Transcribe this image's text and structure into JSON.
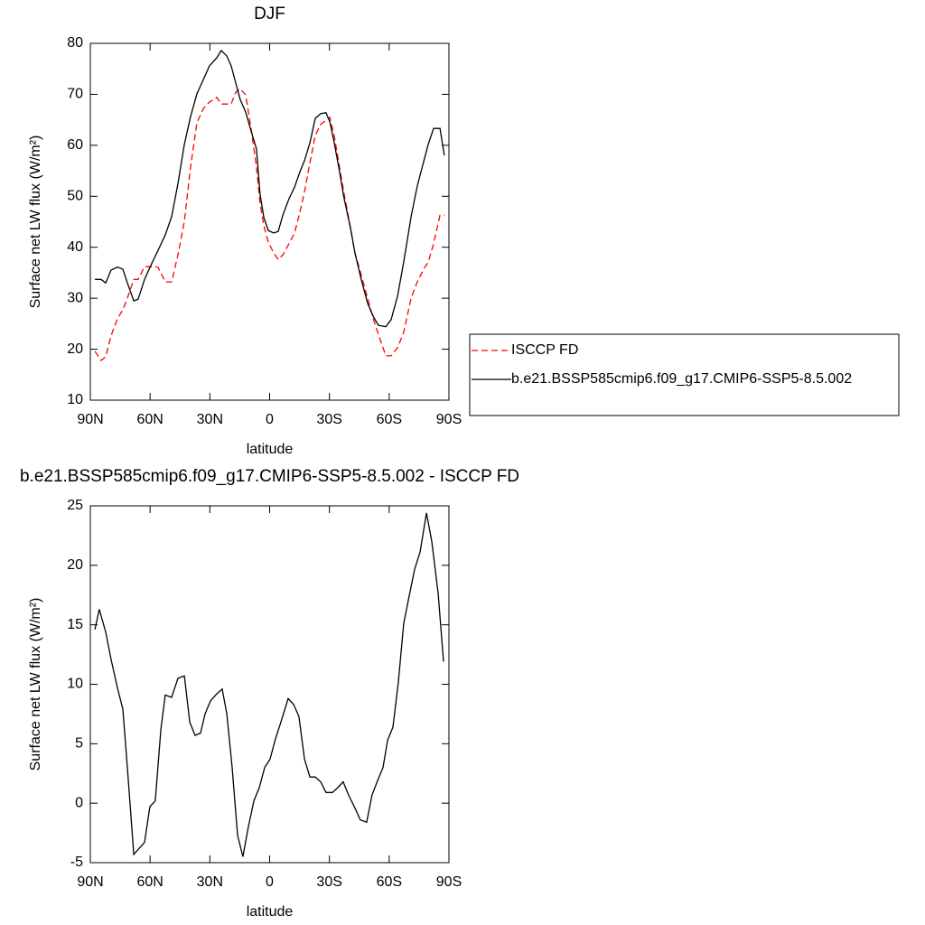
{
  "chart_data": [
    {
      "type": "line",
      "title": "DJF",
      "x_label": "latitude",
      "y_label": "Surface net LW flux (W/m²)",
      "xlim": [
        90,
        -90
      ],
      "ylim": [
        10,
        80
      ],
      "xticks": [
        {
          "value": 90,
          "label": "90N"
        },
        {
          "value": 60,
          "label": "60N"
        },
        {
          "value": 30,
          "label": "30N"
        },
        0,
        {
          "value": -30,
          "label": "30S"
        },
        {
          "value": -60,
          "label": "60S"
        },
        {
          "value": -90,
          "label": "90S"
        }
      ],
      "yticks": [
        10,
        20,
        30,
        40,
        50,
        60,
        70,
        80
      ],
      "legend": "right",
      "x": [
        87.7,
        84.6,
        82.3,
        79.6,
        76.4,
        73.7,
        71.4,
        68.2,
        66.0,
        62.8,
        59.2,
        56.0,
        52.4,
        49.2,
        46.0,
        42.8,
        39.7,
        36.5,
        33.3,
        30.2,
        26.5,
        24.3,
        21.5,
        19.3,
        17.0,
        14.8,
        12.0,
        9.3,
        6.6,
        4.8,
        2.9,
        0.7,
        -2.0,
        -4.3,
        -6.6,
        -9.7,
        -12.5,
        -15.2,
        -17.5,
        -20.2,
        -22.9,
        -25.6,
        -28.3,
        -30.2,
        -32.4,
        -34.7,
        -37.4,
        -40.6,
        -42.8,
        -46.0,
        -49.2,
        -51.9,
        -54.6,
        -58.3,
        -61.0,
        -64.2,
        -67.3,
        -71.0,
        -74.1,
        -77.3,
        -79.6,
        -82.3,
        -85.5,
        -87.7
      ],
      "series": [
        {
          "name": "ISCCP FD",
          "color": "#ff0000",
          "line_style": "dashed",
          "values": [
            19.6,
            17.8,
            18.5,
            22.6,
            26.0,
            27.7,
            30.0,
            33.7,
            33.7,
            36.2,
            36.2,
            36.1,
            33.2,
            33.2,
            38.5,
            45.1,
            55.7,
            64.4,
            67.2,
            68.5,
            69.4,
            68.1,
            68.1,
            68.1,
            70.4,
            71.1,
            69.9,
            63.2,
            55.7,
            48.6,
            44.2,
            41.0,
            38.9,
            37.6,
            38.5,
            40.7,
            42.8,
            46.9,
            50.9,
            56.6,
            61.9,
            64.1,
            64.9,
            65.5,
            61.9,
            56.6,
            50.4,
            43.8,
            38.9,
            34.5,
            30.0,
            26.1,
            22.9,
            18.7,
            18.7,
            20.3,
            23.3,
            30.0,
            33.2,
            35.7,
            37.1,
            40.7,
            46.3,
            46.3
          ]
        },
        {
          "name": "b.e21.BSSP585cmip6.f09_g17.CMIP6-SSP5-8.5.002",
          "color": "#000000",
          "line_style": "solid",
          "values": [
            33.7,
            33.7,
            33.0,
            35.5,
            36.1,
            35.7,
            33.0,
            29.5,
            29.8,
            33.7,
            36.8,
            39.4,
            42.4,
            46.0,
            52.5,
            60.2,
            65.6,
            70.1,
            72.9,
            75.6,
            77.2,
            78.6,
            77.5,
            75.6,
            72.2,
            69.0,
            66.5,
            62.8,
            59.3,
            50.4,
            45.8,
            43.3,
            42.8,
            43.1,
            46.3,
            49.5,
            51.8,
            54.8,
            57.0,
            60.5,
            65.3,
            66.2,
            66.4,
            64.6,
            60.5,
            55.7,
            49.5,
            43.8,
            38.9,
            33.6,
            29.0,
            26.5,
            24.7,
            24.4,
            25.8,
            30.4,
            37.1,
            46.0,
            52.0,
            56.8,
            60.2,
            63.3,
            63.3,
            58.0
          ]
        }
      ]
    },
    {
      "type": "line",
      "title": "b.e21.BSSP585cmip6.f09_g17.CMIP6-SSP5-8.5.002 - ISCCP FD",
      "x_label": "latitude",
      "y_label": "Surface net LW flux (W/m²)",
      "xlim": [
        90,
        -90
      ],
      "ylim": [
        -5,
        25
      ],
      "xticks": [
        {
          "value": 90,
          "label": "90N"
        },
        {
          "value": 60,
          "label": "60N"
        },
        {
          "value": 30,
          "label": "30N"
        },
        0,
        {
          "value": -30,
          "label": "30S"
        },
        {
          "value": -60,
          "label": "60S"
        },
        {
          "value": -90,
          "label": "90S"
        }
      ],
      "yticks": [
        -5,
        0,
        5,
        10,
        15,
        20,
        25
      ],
      "x": [
        87.7,
        85.5,
        82.3,
        79.6,
        76.4,
        73.7,
        71.4,
        68.2,
        66.0,
        62.8,
        60.1,
        57.4,
        54.6,
        52.4,
        49.2,
        46.0,
        42.8,
        40.1,
        37.4,
        34.7,
        32.4,
        29.7,
        26.5,
        23.8,
        21.5,
        18.8,
        16.1,
        13.4,
        10.7,
        7.9,
        5.2,
        2.5,
        -0.2,
        -2.9,
        -5.6,
        -9.3,
        -12.0,
        -14.7,
        -17.5,
        -20.2,
        -22.9,
        -25.6,
        -28.3,
        -31.5,
        -34.2,
        -36.9,
        -39.6,
        -42.8,
        -45.5,
        -48.7,
        -51.4,
        -54.2,
        -56.9,
        -59.2,
        -61.9,
        -64.6,
        -67.3,
        -70.0,
        -72.8,
        -75.5,
        -78.7,
        -81.4,
        -84.6,
        -87.3
      ],
      "series": [
        {
          "color": "#000000",
          "line_style": "solid",
          "values": [
            14.6,
            16.3,
            14.4,
            12.1,
            9.7,
            7.9,
            3.0,
            -4.3,
            -3.9,
            -3.3,
            -0.3,
            0.2,
            6.2,
            9.1,
            8.9,
            10.5,
            10.7,
            6.8,
            5.7,
            5.9,
            7.5,
            8.6,
            9.2,
            9.6,
            7.5,
            3.0,
            -2.7,
            -4.5,
            -2.0,
            0.2,
            1.3,
            3.0,
            3.7,
            5.4,
            6.8,
            8.8,
            8.3,
            7.3,
            3.7,
            2.2,
            2.2,
            1.8,
            0.9,
            0.9,
            1.3,
            1.8,
            0.7,
            -0.4,
            -1.4,
            -1.6,
            0.7,
            1.9,
            3.0,
            5.3,
            6.4,
            10.2,
            15.1,
            17.4,
            19.7,
            21.1,
            24.4,
            22.0,
            17.6,
            11.9
          ]
        }
      ]
    }
  ]
}
